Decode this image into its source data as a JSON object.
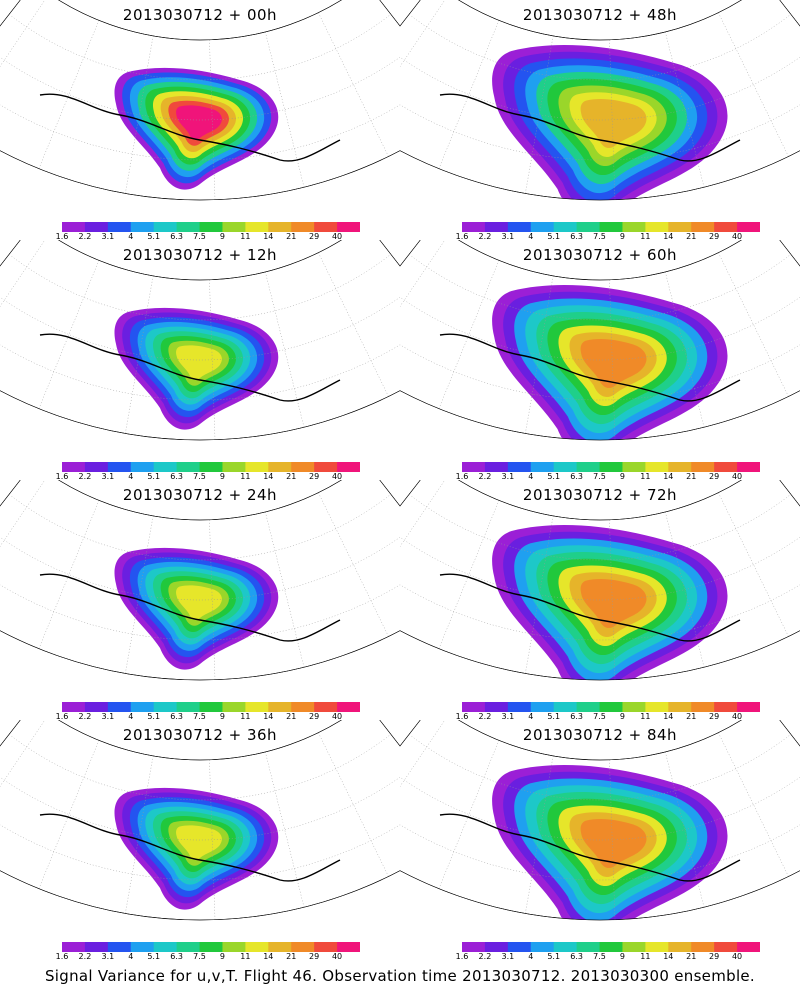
{
  "footer_text": "Signal Variance for u,v,T. Flight 46. Observation time 2013030712. 2013030300 ensemble.",
  "colorbar": {
    "labels": [
      "1.6",
      "2.2",
      "3.1",
      "4",
      "5.1",
      "6.3",
      "7.5",
      "9",
      "11",
      "14",
      "21",
      "29",
      "40"
    ],
    "colors": [
      "#9b1fd6",
      "#6a1fe0",
      "#2454f0",
      "#1fa0f0",
      "#1dc8c8",
      "#1fcf8a",
      "#21c83c",
      "#9ad62a",
      "#e6e62a",
      "#e6b42a",
      "#f08a28",
      "#f04a3c",
      "#f0147a"
    ]
  },
  "chart_data": [
    {
      "type": "heatmap",
      "title": "2013030712 + 00h",
      "forecast_hour": 0,
      "max_level": "40"
    },
    {
      "type": "heatmap",
      "title": "2013030712 + 48h",
      "forecast_hour": 48,
      "max_level": "14"
    },
    {
      "type": "heatmap",
      "title": "2013030712 + 12h",
      "forecast_hour": 12,
      "max_level": "11"
    },
    {
      "type": "heatmap",
      "title": "2013030712 + 60h",
      "forecast_hour": 60,
      "max_level": "21"
    },
    {
      "type": "heatmap",
      "title": "2013030712 + 24h",
      "forecast_hour": 24,
      "max_level": "11"
    },
    {
      "type": "heatmap",
      "title": "2013030712 + 72h",
      "forecast_hour": 72,
      "max_level": "21"
    },
    {
      "type": "heatmap",
      "title": "2013030712 + 36h",
      "forecast_hour": 36,
      "max_level": "11"
    },
    {
      "type": "heatmap",
      "title": "2013030712 + 84h",
      "forecast_hour": 84,
      "max_level": "21"
    }
  ]
}
